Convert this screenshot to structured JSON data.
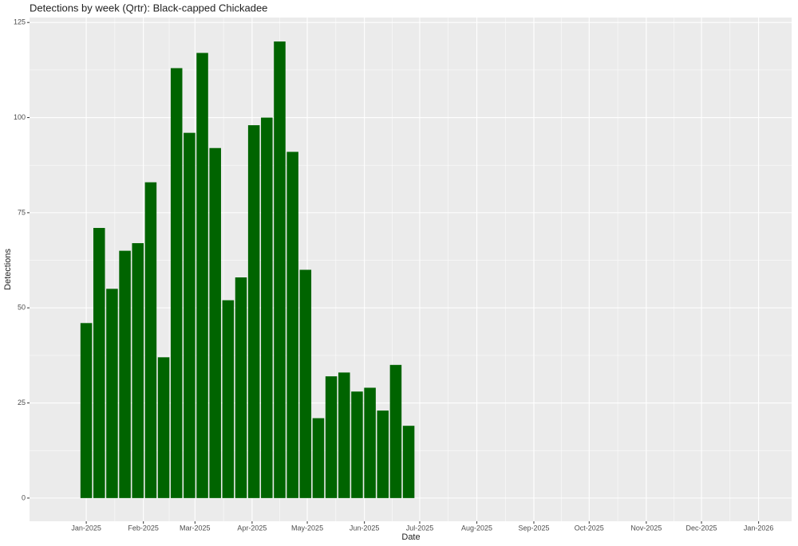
{
  "chart_data": {
    "type": "bar",
    "title": "Detections by week (Qrtr): Black-capped Chickadee",
    "x_label": "Date",
    "y_label": "Detections",
    "x": [
      0,
      1,
      2,
      3,
      4,
      5,
      6,
      7,
      8,
      9,
      10,
      11,
      12,
      13,
      14,
      15,
      16,
      17,
      18,
      19,
      20,
      21,
      22,
      23,
      24,
      25
    ],
    "values": [
      46,
      71,
      55,
      65,
      67,
      83,
      37,
      113,
      96,
      117,
      92,
      52,
      58,
      98,
      100,
      120,
      91,
      60,
      21,
      32,
      33,
      28,
      29,
      23,
      35,
      19
    ],
    "color": "#006400",
    "xlim": [
      -4.4,
      54.7
    ],
    "xticks": [
      {
        "value": 0,
        "label": "Jan-2025"
      },
      {
        "value": 4.43,
        "label": "Feb-2025"
      },
      {
        "value": 8.43,
        "label": "Mar-2025"
      },
      {
        "value": 12.86,
        "label": "Apr-2025"
      },
      {
        "value": 17.14,
        "label": "May-2025"
      },
      {
        "value": 21.57,
        "label": "Jun-2025"
      },
      {
        "value": 25.86,
        "label": "Jul-2025"
      },
      {
        "value": 30.29,
        "label": "Aug-2025"
      },
      {
        "value": 34.71,
        "label": "Sep-2025"
      },
      {
        "value": 39,
        "label": "Oct-2025"
      },
      {
        "value": 43.43,
        "label": "Nov-2025"
      },
      {
        "value": 47.71,
        "label": "Dec-2025"
      },
      {
        "value": 52.14,
        "label": "Jan-2026"
      }
    ],
    "ylim": [
      -6.1,
      126.3
    ],
    "yticks": [
      0,
      25,
      50,
      75,
      100,
      125
    ],
    "grid": true
  }
}
